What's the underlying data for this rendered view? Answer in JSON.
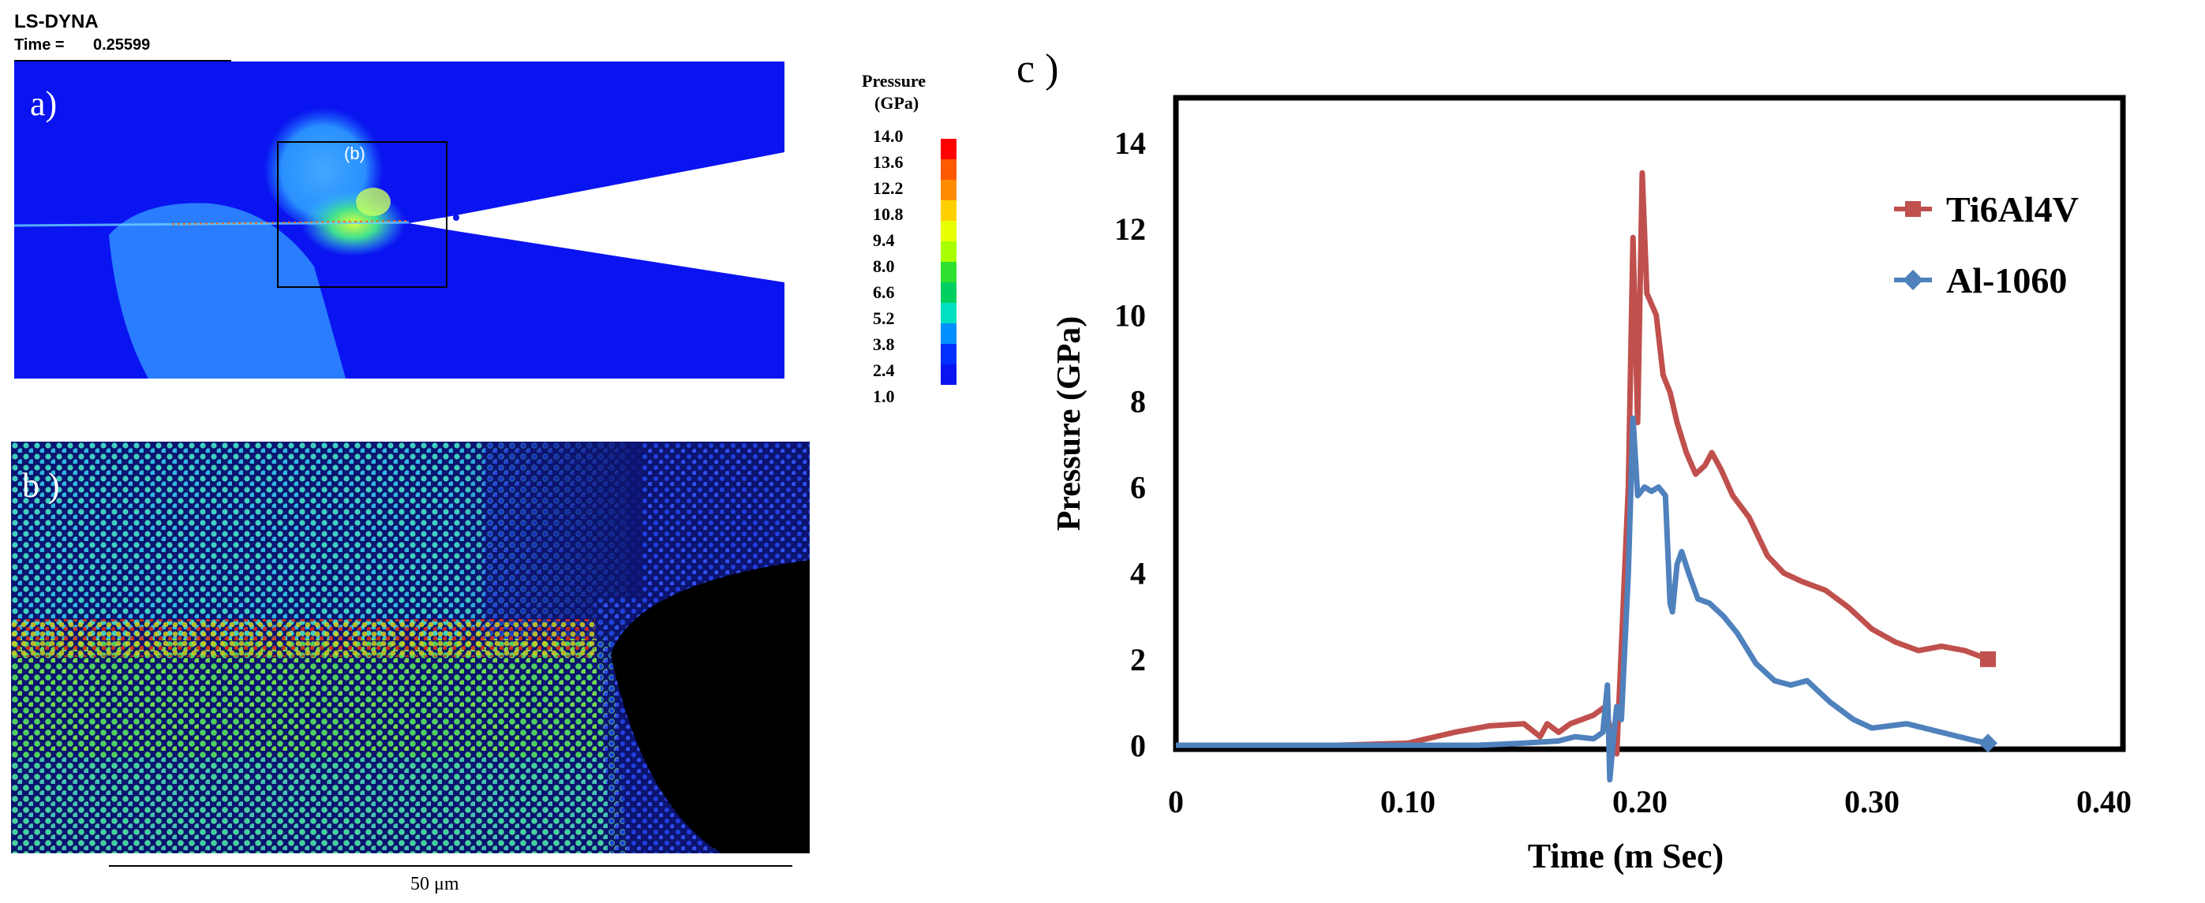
{
  "header": {
    "software": "LS-DYNA",
    "time_label": "Time =",
    "time_value": "0.25599"
  },
  "panels": {
    "a": {
      "label": "a)",
      "inset_label": "(b)"
    },
    "b": {
      "label": "b )",
      "scale_label": "50 μm"
    },
    "c": {
      "label": "c )"
    }
  },
  "colorbar": {
    "title_line1": "Pressure",
    "title_line2": "(GPa)",
    "ticks": [
      "14.0",
      "13.6",
      "12.2",
      "10.8",
      "9.4",
      "8.0",
      "6.6",
      "5.2",
      "3.8",
      "2.4",
      "1.0"
    ],
    "colors": [
      "#ff0000",
      "#ff5a00",
      "#ff8c00",
      "#ffd000",
      "#e8ff00",
      "#a8ff00",
      "#30e030",
      "#00d060",
      "#00e0c0",
      "#0090ff",
      "#0030ff",
      "#0a14f0"
    ]
  },
  "chart_data": {
    "type": "line",
    "xlabel": "Time (m Sec)",
    "ylabel": "Pressure (GPa)",
    "xlim": [
      0,
      0.4
    ],
    "ylim": [
      0,
      14
    ],
    "x_ticks": [
      "0",
      "0.10",
      "0.20",
      "0.30",
      "0.40"
    ],
    "x_tick_values": [
      0,
      0.1,
      0.2,
      0.3,
      0.4
    ],
    "y_ticks": [
      "0",
      "2",
      "4",
      "6",
      "8",
      "10",
      "12",
      "14"
    ],
    "y_tick_values": [
      0,
      2,
      4,
      6,
      8,
      10,
      12,
      14
    ],
    "legend_position": "top-right",
    "series": [
      {
        "name": "Ti6Al4V",
        "color": "#c0504d",
        "marker": "square",
        "points": [
          [
            0,
            0
          ],
          [
            0.07,
            0
          ],
          [
            0.1,
            0.05
          ],
          [
            0.12,
            0.3
          ],
          [
            0.135,
            0.45
          ],
          [
            0.15,
            0.5
          ],
          [
            0.157,
            0.2
          ],
          [
            0.16,
            0.5
          ],
          [
            0.165,
            0.3
          ],
          [
            0.17,
            0.5
          ],
          [
            0.175,
            0.6
          ],
          [
            0.18,
            0.7
          ],
          [
            0.185,
            0.9
          ],
          [
            0.188,
            0.2
          ],
          [
            0.19,
            -0.2
          ],
          [
            0.195,
            6
          ],
          [
            0.197,
            11.8
          ],
          [
            0.199,
            7.5
          ],
          [
            0.201,
            13.3
          ],
          [
            0.203,
            10.5
          ],
          [
            0.207,
            10
          ],
          [
            0.21,
            8.6
          ],
          [
            0.213,
            8.2
          ],
          [
            0.216,
            7.5
          ],
          [
            0.22,
            6.8
          ],
          [
            0.224,
            6.3
          ],
          [
            0.228,
            6.5
          ],
          [
            0.231,
            6.8
          ],
          [
            0.235,
            6.4
          ],
          [
            0.24,
            5.8
          ],
          [
            0.247,
            5.3
          ],
          [
            0.255,
            4.4
          ],
          [
            0.262,
            4.0
          ],
          [
            0.27,
            3.8
          ],
          [
            0.28,
            3.6
          ],
          [
            0.29,
            3.2
          ],
          [
            0.3,
            2.7
          ],
          [
            0.31,
            2.4
          ],
          [
            0.32,
            2.2
          ],
          [
            0.33,
            2.3
          ],
          [
            0.34,
            2.2
          ],
          [
            0.35,
            2.0
          ]
        ]
      },
      {
        "name": "Al-1060",
        "color": "#4f81bd",
        "marker": "diamond",
        "points": [
          [
            0,
            0
          ],
          [
            0.1,
            0
          ],
          [
            0.13,
            0
          ],
          [
            0.15,
            0.05
          ],
          [
            0.165,
            0.1
          ],
          [
            0.172,
            0.2
          ],
          [
            0.18,
            0.15
          ],
          [
            0.184,
            0.3
          ],
          [
            0.186,
            1.4
          ],
          [
            0.187,
            -0.8
          ],
          [
            0.189,
            0.4
          ],
          [
            0.19,
            0.9
          ],
          [
            0.192,
            0.6
          ],
          [
            0.195,
            4
          ],
          [
            0.197,
            7.6
          ],
          [
            0.199,
            5.8
          ],
          [
            0.202,
            6.0
          ],
          [
            0.205,
            5.9
          ],
          [
            0.208,
            6.0
          ],
          [
            0.211,
            5.8
          ],
          [
            0.213,
            3.3
          ],
          [
            0.214,
            3.1
          ],
          [
            0.216,
            4.2
          ],
          [
            0.218,
            4.5
          ],
          [
            0.221,
            4.0
          ],
          [
            0.225,
            3.4
          ],
          [
            0.23,
            3.3
          ],
          [
            0.236,
            3.0
          ],
          [
            0.242,
            2.6
          ],
          [
            0.25,
            1.9
          ],
          [
            0.258,
            1.5
          ],
          [
            0.265,
            1.4
          ],
          [
            0.272,
            1.5
          ],
          [
            0.282,
            1.0
          ],
          [
            0.292,
            0.6
          ],
          [
            0.3,
            0.4
          ],
          [
            0.315,
            0.5
          ],
          [
            0.33,
            0.3
          ],
          [
            0.345,
            0.1
          ],
          [
            0.35,
            0.05
          ]
        ]
      }
    ]
  }
}
